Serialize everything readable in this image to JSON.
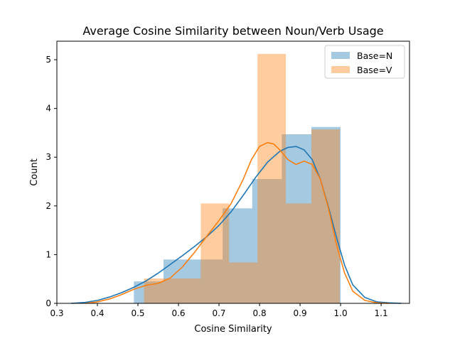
{
  "chart_data": {
    "type": "bar",
    "title": "Average Cosine Similarity between Noun/Verb Usage",
    "xlabel": "Cosine Similarity",
    "ylabel": "Count",
    "xlim": [
      0.3,
      1.17
    ],
    "ylim": [
      0,
      5.38
    ],
    "xticks": [
      0.3,
      0.4,
      0.5,
      0.6,
      0.7,
      0.8,
      0.9,
      1.0,
      1.1
    ],
    "xtick_labels": [
      "0.3",
      "0.4",
      "0.5",
      "0.6",
      "0.7",
      "0.8",
      "0.9",
      "1.0",
      "1.1"
    ],
    "yticks": [
      0,
      1,
      2,
      3,
      4,
      5
    ],
    "ytick_labels": [
      "0",
      "1",
      "2",
      "3",
      "4",
      "5"
    ],
    "legend": {
      "placement": "top-right"
    },
    "grid": false,
    "series": [
      {
        "name": "Base=N",
        "color": "#1f77b4",
        "bar_alpha": 0.4,
        "bins": [
          {
            "x0": 0.49,
            "x1": 0.563,
            "count": 0.45
          },
          {
            "x0": 0.563,
            "x1": 0.636,
            "count": 0.9
          },
          {
            "x0": 0.636,
            "x1": 0.709,
            "count": 0.9
          },
          {
            "x0": 0.709,
            "x1": 0.782,
            "count": 1.95
          },
          {
            "x0": 0.782,
            "x1": 0.855,
            "count": 2.55
          },
          {
            "x0": 0.855,
            "x1": 0.928,
            "count": 3.47
          },
          {
            "x0": 0.928,
            "x1": 1.0,
            "count": 3.62
          }
        ],
        "kde": {
          "x": [
            0.335,
            0.37,
            0.4,
            0.43,
            0.46,
            0.49,
            0.52,
            0.55,
            0.58,
            0.61,
            0.64,
            0.67,
            0.7,
            0.73,
            0.76,
            0.79,
            0.82,
            0.85,
            0.87,
            0.89,
            0.91,
            0.93,
            0.95,
            0.97,
            0.99,
            1.01,
            1.03,
            1.06,
            1.09,
            1.12,
            1.15
          ],
          "y": [
            0.0,
            0.02,
            0.06,
            0.13,
            0.22,
            0.33,
            0.46,
            0.62,
            0.8,
            0.98,
            1.17,
            1.37,
            1.6,
            1.88,
            2.22,
            2.58,
            2.9,
            3.12,
            3.2,
            3.22,
            3.15,
            2.95,
            2.55,
            1.98,
            1.35,
            0.78,
            0.38,
            0.12,
            0.03,
            0.01,
            0.0
          ]
        }
      },
      {
        "name": "Base=V",
        "color": "#ff7f0e",
        "bar_alpha": 0.4,
        "bins": [
          {
            "x0": 0.515,
            "x1": 0.585,
            "count": 0.51
          },
          {
            "x0": 0.585,
            "x1": 0.655,
            "count": 0.51
          },
          {
            "x0": 0.655,
            "x1": 0.725,
            "count": 2.05
          },
          {
            "x0": 0.725,
            "x1": 0.795,
            "count": 0.84
          },
          {
            "x0": 0.795,
            "x1": 0.865,
            "count": 5.12
          },
          {
            "x0": 0.865,
            "x1": 0.928,
            "count": 2.05
          },
          {
            "x0": 0.928,
            "x1": 0.998,
            "count": 3.57
          }
        ],
        "kde": {
          "x": [
            0.37,
            0.4,
            0.43,
            0.46,
            0.49,
            0.52,
            0.55,
            0.58,
            0.61,
            0.64,
            0.67,
            0.7,
            0.73,
            0.76,
            0.78,
            0.8,
            0.82,
            0.835,
            0.85,
            0.87,
            0.89,
            0.91,
            0.93,
            0.95,
            0.97,
            0.99,
            1.01,
            1.03,
            1.06,
            1.09,
            1.12
          ],
          "y": [
            0.0,
            0.03,
            0.09,
            0.18,
            0.29,
            0.37,
            0.41,
            0.52,
            0.75,
            1.05,
            1.38,
            1.7,
            2.05,
            2.55,
            2.95,
            3.22,
            3.3,
            3.27,
            3.15,
            2.95,
            2.85,
            2.92,
            2.85,
            2.55,
            1.95,
            1.2,
            0.62,
            0.25,
            0.06,
            0.01,
            0.0
          ]
        }
      }
    ]
  }
}
